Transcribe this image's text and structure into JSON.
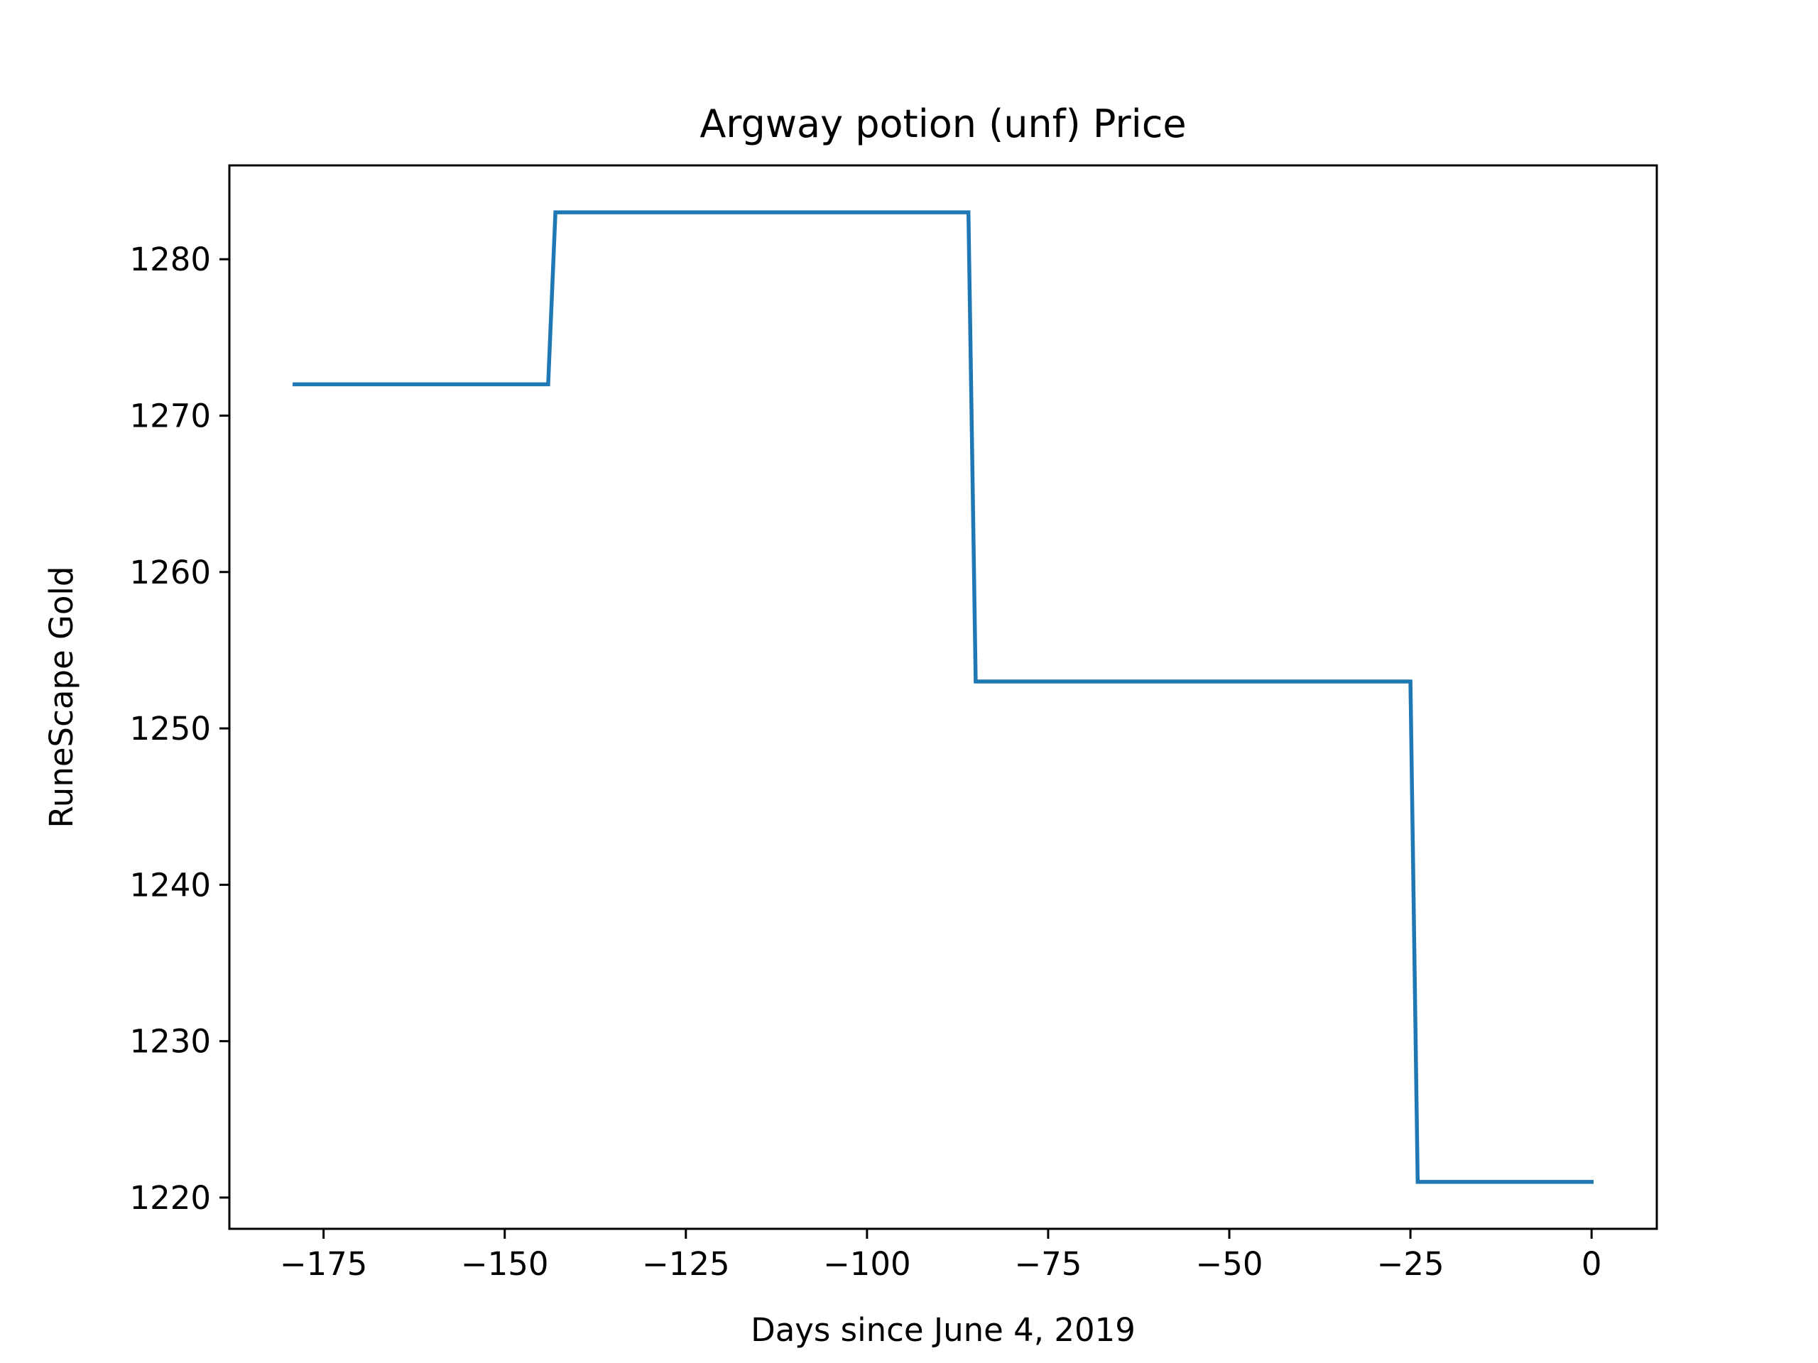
{
  "chart_data": {
    "type": "line",
    "title": "Argway potion (unf) Price",
    "xlabel": "Days since June 4, 2019",
    "ylabel": "RuneScape Gold",
    "xlim": [
      -188,
      9
    ],
    "ylim": [
      1218,
      1286
    ],
    "xticks": [
      -175,
      -150,
      -125,
      -100,
      -75,
      -50,
      -25,
      0
    ],
    "xtick_labels": [
      "−175",
      "−150",
      "−125",
      "−100",
      "−75",
      "−50",
      "−25",
      "0"
    ],
    "yticks": [
      1220,
      1230,
      1240,
      1250,
      1260,
      1270,
      1280
    ],
    "ytick_labels": [
      "1220",
      "1230",
      "1240",
      "1250",
      "1260",
      "1270",
      "1280"
    ],
    "grid": false,
    "series": [
      {
        "color": "#1f77b4",
        "x": [
          -179,
          -144,
          -143,
          -86,
          -85,
          -25,
          -24,
          0
        ],
        "y": [
          1272,
          1272,
          1283,
          1283,
          1253,
          1253,
          1221,
          1221
        ]
      }
    ]
  }
}
